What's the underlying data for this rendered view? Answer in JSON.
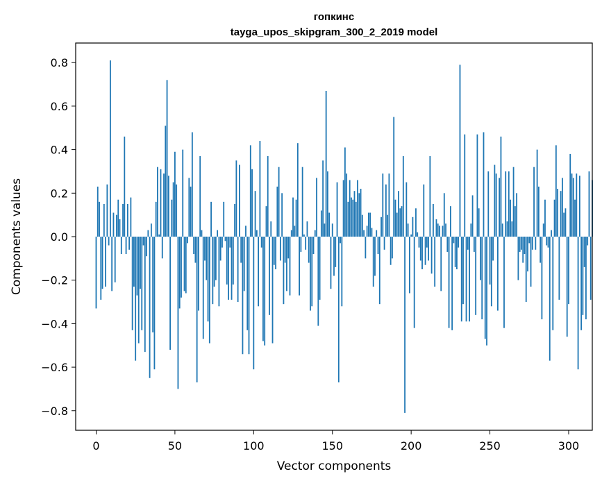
{
  "chart_data": {
    "type": "bar",
    "title": "гопкинс",
    "subtitle": "tayga_upos_skipgram_300_2_2019 model",
    "xlabel": "Vector components",
    "ylabel": "Components values",
    "xlim": [
      -13,
      315
    ],
    "ylim": [
      -0.89,
      0.89
    ],
    "x_ticks": [
      0,
      50,
      100,
      150,
      200,
      250,
      300
    ],
    "x_tick_labels": [
      "0",
      "50",
      "100",
      "150",
      "200",
      "250",
      "300"
    ],
    "y_ticks": [
      -0.8,
      -0.6,
      -0.4,
      -0.2,
      0.0,
      0.2,
      0.4,
      0.6,
      0.8
    ],
    "y_tick_labels": [
      "−0.8",
      "−0.6",
      "−0.4",
      "−0.2",
      "0.0",
      "0.2",
      "0.4",
      "0.6",
      "0.8"
    ],
    "bar_color": "#1f77b4",
    "values": [
      -0.33,
      0.23,
      0.16,
      -0.29,
      -0.24,
      0.15,
      -0.23,
      0.24,
      -0.04,
      0.81,
      -0.25,
      0.11,
      -0.21,
      0.1,
      0.17,
      0.08,
      -0.08,
      0.15,
      0.46,
      -0.08,
      0.15,
      -0.06,
      0.18,
      -0.43,
      -0.23,
      -0.57,
      -0.27,
      -0.49,
      -0.24,
      -0.43,
      -0.04,
      -0.53,
      -0.09,
      0.03,
      -0.65,
      0.06,
      -0.44,
      -0.61,
      0.16,
      0.32,
      0.01,
      0.31,
      -0.1,
      0.29,
      0.51,
      0.72,
      0.28,
      -0.52,
      0.17,
      0.25,
      0.39,
      0.24,
      -0.7,
      -0.33,
      -0.28,
      0.4,
      -0.25,
      -0.26,
      -0.03,
      0.27,
      0.23,
      0.48,
      -0.08,
      -0.12,
      -0.67,
      -0.34,
      0.37,
      0.03,
      -0.47,
      -0.11,
      -0.2,
      -0.39,
      -0.49,
      0.16,
      -0.31,
      -0.23,
      -0.2,
      0.03,
      -0.32,
      -0.11,
      -0.05,
      0.16,
      -0.02,
      -0.22,
      -0.29,
      -0.05,
      -0.29,
      -0.22,
      0.15,
      0.35,
      -0.3,
      0.33,
      -0.12,
      -0.54,
      -0.25,
      0.05,
      -0.43,
      -0.54,
      0.42,
      0.31,
      -0.61,
      0.21,
      0.03,
      -0.32,
      0.44,
      -0.05,
      -0.48,
      -0.5,
      0.14,
      0.37,
      -0.36,
      0.07,
      -0.49,
      -0.13,
      -0.15,
      0.23,
      0.32,
      -0.11,
      0.2,
      -0.31,
      -0.12,
      -0.25,
      -0.1,
      -0.27,
      0.03,
      0.18,
      0.05,
      0.17,
      0.43,
      -0.27,
      -0.07,
      0.32,
      0.01,
      -0.06,
      0.07,
      -0.12,
      -0.34,
      -0.32,
      -0.08,
      0.03,
      0.27,
      -0.41,
      -0.29,
      0.12,
      0.35,
      0.06,
      0.67,
      0.3,
      0.11,
      -0.24,
      0.06,
      -0.18,
      -0.14,
      0.25,
      -0.67,
      -0.03,
      -0.32,
      0.26,
      0.41,
      0.29,
      0.16,
      0.26,
      0.18,
      0.17,
      0.21,
      0.16,
      0.26,
      0.2,
      0.22,
      0.1,
      0.03,
      -0.1,
      0.05,
      0.11,
      0.11,
      0.04,
      -0.23,
      -0.18,
      0.03,
      -0.08,
      -0.31,
      0.09,
      0.29,
      -0.06,
      0.24,
      0.1,
      0.29,
      -0.13,
      -0.1,
      0.55,
      0.17,
      0.11,
      0.21,
      0.13,
      0.14,
      0.37,
      -0.81,
      0.25,
      0.06,
      -0.26,
      0.01,
      0.09,
      -0.42,
      0.13,
      0.02,
      -0.05,
      -0.11,
      -0.15,
      0.24,
      -0.13,
      -0.05,
      -0.11,
      0.37,
      -0.17,
      0.15,
      -0.23,
      0.08,
      0.06,
      0.05,
      -0.25,
      0.05,
      0.2,
      0.06,
      -0.07,
      -0.42,
      0.14,
      -0.43,
      -0.03,
      -0.14,
      -0.15,
      -0.05,
      0.79,
      -0.39,
      -0.31,
      0.47,
      -0.39,
      -0.06,
      -0.39,
      0.06,
      0.19,
      -0.07,
      -0.36,
      0.47,
      0.13,
      -0.2,
      -0.38,
      0.48,
      -0.47,
      -0.5,
      0.3,
      -0.22,
      -0.32,
      -0.11,
      0.33,
      0.29,
      -0.34,
      0.27,
      0.46,
      0.06,
      -0.42,
      0.3,
      0.07,
      0.3,
      0.17,
      0.07,
      0.32,
      0.14,
      0.2,
      -0.2,
      -0.07,
      -0.06,
      -0.12,
      -0.08,
      -0.3,
      -0.16,
      -0.03,
      -0.23,
      -0.06,
      0.32,
      -0.06,
      0.4,
      0.23,
      -0.12,
      -0.38,
      0.06,
      0.17,
      -0.04,
      -0.05,
      -0.57,
      0.03,
      -0.43,
      0.17,
      0.42,
      0.22,
      -0.29,
      0.21,
      0.27,
      0.11,
      0.13,
      -0.46,
      -0.31,
      0.38,
      0.29,
      0.27,
      0.17,
      0.29,
      -0.61,
      0.28,
      -0.43,
      -0.36,
      -0.14,
      -0.38,
      -0.04,
      0.3,
      -0.29,
      0.26
    ]
  }
}
